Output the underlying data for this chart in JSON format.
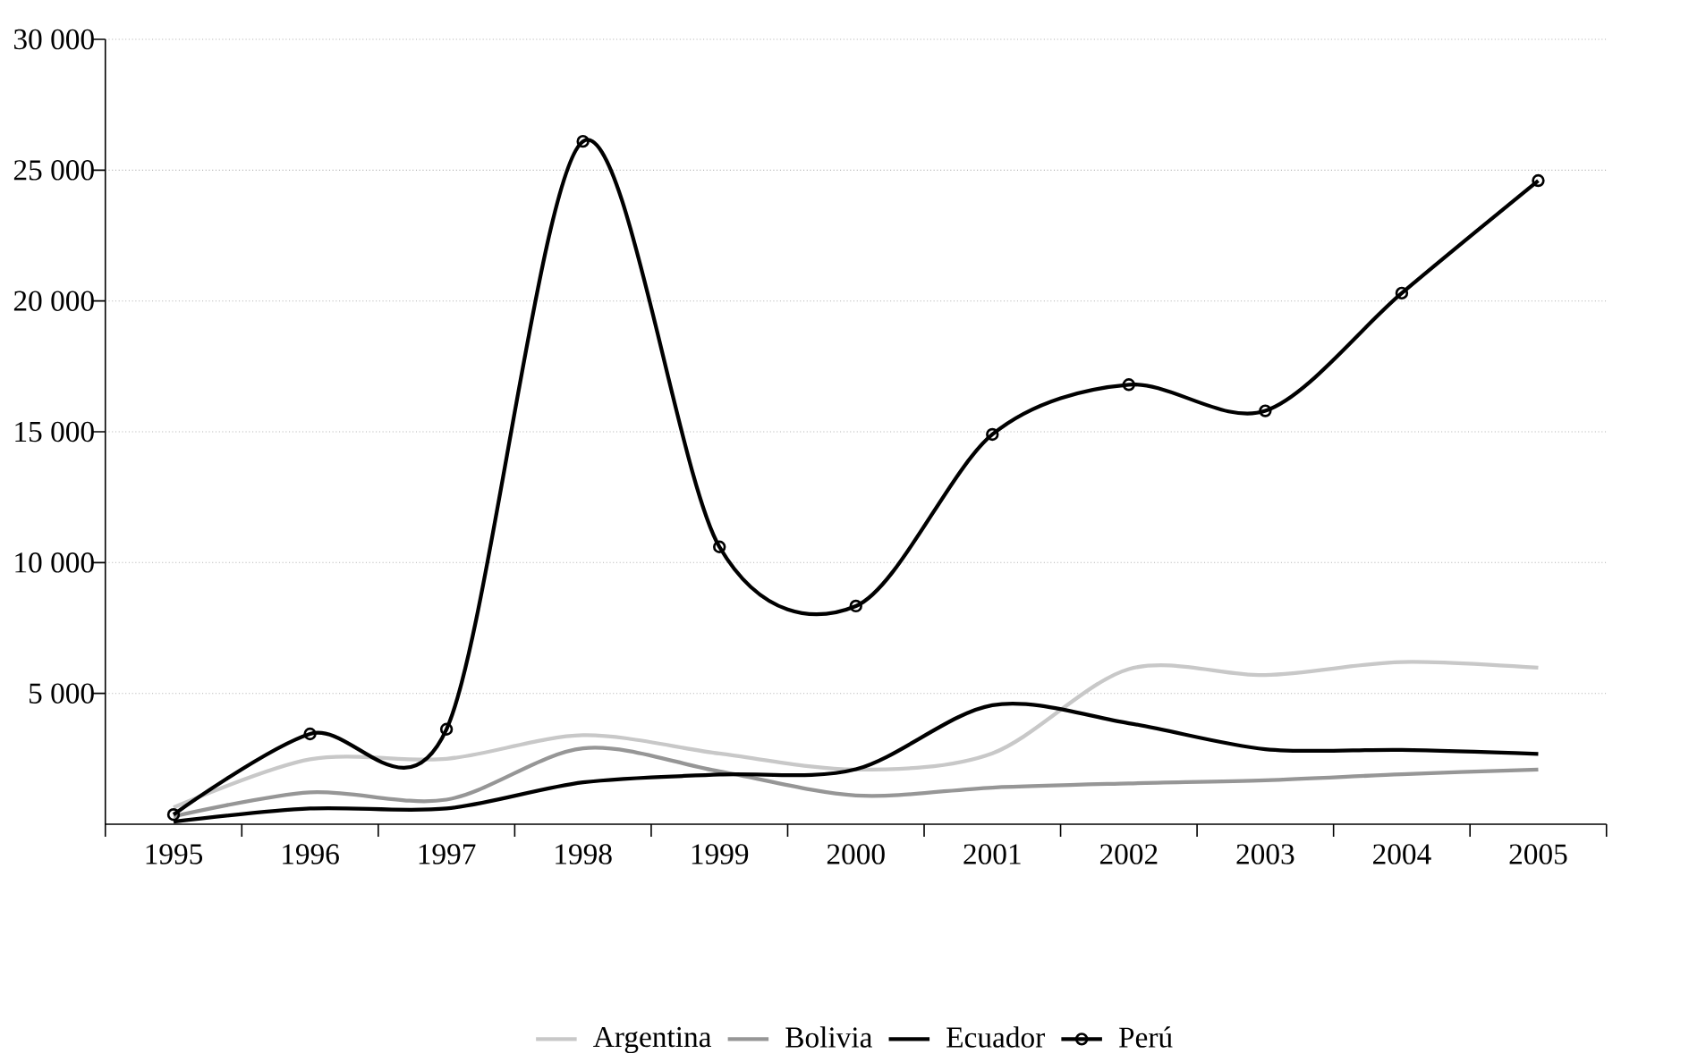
{
  "chart_data": {
    "type": "line",
    "categories": [
      "1995",
      "1996",
      "1997",
      "1998",
      "1999",
      "2000",
      "2001",
      "2002",
      "2003",
      "2004",
      "2005"
    ],
    "series": [
      {
        "name": "Argentina",
        "color": "#c8c8c8",
        "values": [
          640,
          2480,
          2500,
          3400,
          2700,
          2090,
          2710,
          5930,
          5700,
          6200,
          5980
        ]
      },
      {
        "name": "Bolivia",
        "color": "#969696",
        "values": [
          300,
          1220,
          940,
          2900,
          2020,
          1100,
          1400,
          1560,
          1680,
          1910,
          2090
        ]
      },
      {
        "name": "Ecuador",
        "color": "#000000",
        "values": [
          100,
          600,
          600,
          1600,
          1900,
          2100,
          4550,
          3860,
          2870,
          2840,
          2690
        ]
      },
      {
        "name": "Perú",
        "color": "#000000",
        "marker": "circle",
        "values": [
          370,
          3450,
          3630,
          26100,
          10600,
          8340,
          14900,
          16800,
          15800,
          20300,
          24600
        ]
      }
    ],
    "ylim": [
      0,
      30000
    ],
    "yticks": [
      {
        "value": 5000,
        "label": "5 000"
      },
      {
        "value": 10000,
        "label": "10 000"
      },
      {
        "value": 15000,
        "label": "15 000"
      },
      {
        "value": 20000,
        "label": "20 000"
      },
      {
        "value": 25000,
        "label": "25 000"
      },
      {
        "value": 30000,
        "label": "30 000"
      }
    ],
    "grid": "y",
    "legend": "bottom",
    "marker": "none",
    "line_style": "solid"
  }
}
